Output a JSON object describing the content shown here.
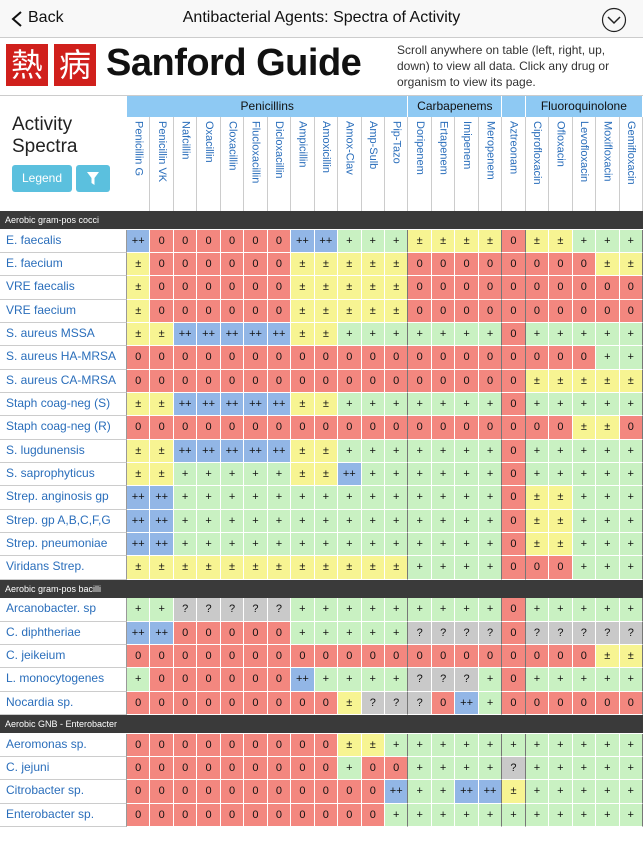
{
  "nav": {
    "back": "Back",
    "title": "Antibacterial Agents: Spectra of Activity"
  },
  "header": {
    "logo_chars": [
      "熱",
      "病"
    ],
    "brand": "Sanford Guide",
    "instructions": "Scroll anywhere on table (left, right, up, down) to view all data. Click any drug or organism to view its page."
  },
  "panel": {
    "title": "Activity Spectra",
    "legend_button": "Legend"
  },
  "table": {
    "groups": [
      {
        "label": "Penicillins",
        "drugs": [
          "Penicillin G",
          "Penicillin VK",
          "Nafcillin",
          "Oxacillin",
          "Cloxacillin",
          "Flucloxacillin",
          "Dicloxacillin",
          "Ampicillin",
          "Amoxicillin",
          "Amox-Clav",
          "Amp-Sulb",
          "Pip-Tazo"
        ]
      },
      {
        "label": "Carbapenems",
        "drugs": [
          "Doripenem",
          "Ertapenem",
          "Imipenem",
          "Meropenem"
        ]
      },
      {
        "label": null,
        "drugs": [
          "Aztreonam"
        ]
      },
      {
        "label": "Fluoroquinolone",
        "drugs": [
          "Ciprofloxacin",
          "Ofloxacin",
          "Levofloxacin",
          "Moxifloxacin",
          "Gemifloxacin"
        ]
      }
    ],
    "sections": [
      {
        "title": "Aerobic gram-pos cocci",
        "rows": [
          {
            "organism": "E. faecalis",
            "cells": [
              "++",
              "0",
              "0",
              "0",
              "0",
              "0",
              "0",
              "++",
              "++",
              "+",
              "+",
              "+",
              "±",
              "±",
              "±",
              "±",
              "0",
              "±",
              "±",
              "+",
              "+",
              "+"
            ]
          },
          {
            "organism": "E. faecium",
            "cells": [
              "±",
              "0",
              "0",
              "0",
              "0",
              "0",
              "0",
              "±",
              "±",
              "±",
              "±",
              "±",
              "0",
              "0",
              "0",
              "0",
              "0",
              "0",
              "0",
              "0",
              "±",
              "±"
            ]
          },
          {
            "organism": "VRE faecalis",
            "cells": [
              "±",
              "0",
              "0",
              "0",
              "0",
              "0",
              "0",
              "±",
              "±",
              "±",
              "±",
              "±",
              "0",
              "0",
              "0",
              "0",
              "0",
              "0",
              "0",
              "0",
              "0",
              "0"
            ]
          },
          {
            "organism": "VRE faecium",
            "cells": [
              "±",
              "0",
              "0",
              "0",
              "0",
              "0",
              "0",
              "±",
              "±",
              "±",
              "±",
              "±",
              "0",
              "0",
              "0",
              "0",
              "0",
              "0",
              "0",
              "0",
              "0",
              "0"
            ]
          },
          {
            "organism": "S. aureus MSSA",
            "cells": [
              "±",
              "±",
              "++",
              "++",
              "++",
              "++",
              "++",
              "±",
              "±",
              "+",
              "+",
              "+",
              "+",
              "+",
              "+",
              "+",
              "0",
              "+",
              "+",
              "+",
              "+",
              "+"
            ]
          },
          {
            "organism": "S. aureus HA-MRSA",
            "cells": [
              "0",
              "0",
              "0",
              "0",
              "0",
              "0",
              "0",
              "0",
              "0",
              "0",
              "0",
              "0",
              "0",
              "0",
              "0",
              "0",
              "0",
              "0",
              "0",
              "0",
              "+",
              "+"
            ]
          },
          {
            "organism": "S. aureus CA-MRSA",
            "cells": [
              "0",
              "0",
              "0",
              "0",
              "0",
              "0",
              "0",
              "0",
              "0",
              "0",
              "0",
              "0",
              "0",
              "0",
              "0",
              "0",
              "0",
              "±",
              "±",
              "±",
              "±",
              "±"
            ]
          },
          {
            "organism": "Staph coag-neg (S)",
            "cells": [
              "±",
              "±",
              "++",
              "++",
              "++",
              "++",
              "++",
              "±",
              "±",
              "+",
              "+",
              "+",
              "+",
              "+",
              "+",
              "+",
              "0",
              "+",
              "+",
              "+",
              "+",
              "+"
            ]
          },
          {
            "organism": "Staph coag-neg (R)",
            "cells": [
              "0",
              "0",
              "0",
              "0",
              "0",
              "0",
              "0",
              "0",
              "0",
              "0",
              "0",
              "0",
              "0",
              "0",
              "0",
              "0",
              "0",
              "0",
              "0",
              "±",
              "±",
              "0"
            ]
          },
          {
            "organism": "S. lugdunensis",
            "cells": [
              "±",
              "±",
              "++",
              "++",
              "++",
              "++",
              "++",
              "±",
              "±",
              "+",
              "+",
              "+",
              "+",
              "+",
              "+",
              "+",
              "0",
              "+",
              "+",
              "+",
              "+",
              "+"
            ]
          },
          {
            "organism": "S. saprophyticus",
            "cells": [
              "±",
              "±",
              "+",
              "+",
              "+",
              "+",
              "+",
              "±",
              "±",
              "++",
              "+",
              "+",
              "+",
              "+",
              "+",
              "+",
              "0",
              "+",
              "+",
              "+",
              "+",
              "+"
            ]
          },
          {
            "organism": "Strep. anginosis gp",
            "cells": [
              "++",
              "++",
              "+",
              "+",
              "+",
              "+",
              "+",
              "+",
              "+",
              "+",
              "+",
              "+",
              "+",
              "+",
              "+",
              "+",
              "0",
              "±",
              "±",
              "+",
              "+",
              "+"
            ]
          },
          {
            "organism": "Strep. gp A,B,C,F,G",
            "cells": [
              "++",
              "++",
              "+",
              "+",
              "+",
              "+",
              "+",
              "+",
              "+",
              "+",
              "+",
              "+",
              "+",
              "+",
              "+",
              "+",
              "0",
              "±",
              "±",
              "+",
              "+",
              "+"
            ]
          },
          {
            "organism": "Strep. pneumoniae",
            "cells": [
              "++",
              "++",
              "+",
              "+",
              "+",
              "+",
              "+",
              "+",
              "+",
              "+",
              "+",
              "+",
              "+",
              "+",
              "+",
              "+",
              "0",
              "±",
              "±",
              "+",
              "+",
              "+"
            ]
          },
          {
            "organism": "Viridans Strep.",
            "cells": [
              "±",
              "±",
              "±",
              "±",
              "±",
              "±",
              "±",
              "±",
              "±",
              "±",
              "±",
              "±",
              "+",
              "+",
              "+",
              "+",
              "0",
              "0",
              "0",
              "+",
              "+",
              "+"
            ]
          }
        ]
      },
      {
        "title": "Aerobic gram-pos bacilli",
        "rows": [
          {
            "organism": "Arcanobacter. sp",
            "cells": [
              "+",
              "+",
              "?",
              "?",
              "?",
              "?",
              "?",
              "+",
              "+",
              "+",
              "+",
              "+",
              "+",
              "+",
              "+",
              "+",
              "0",
              "+",
              "+",
              "+",
              "+",
              "+"
            ]
          },
          {
            "organism": "C. diphtheriae",
            "cells": [
              "++",
              "++",
              "0",
              "0",
              "0",
              "0",
              "0",
              "+",
              "+",
              "+",
              "+",
              "+",
              "?",
              "?",
              "?",
              "?",
              "0",
              "?",
              "?",
              "?",
              "?",
              "?"
            ]
          },
          {
            "organism": "C. jeikeium",
            "cells": [
              "0",
              "0",
              "0",
              "0",
              "0",
              "0",
              "0",
              "0",
              "0",
              "0",
              "0",
              "0",
              "0",
              "0",
              "0",
              "0",
              "0",
              "0",
              "0",
              "0",
              "±",
              "±"
            ]
          },
          {
            "organism": "L. monocytogenes",
            "cells": [
              "+",
              "0",
              "0",
              "0",
              "0",
              "0",
              "0",
              "++",
              "+",
              "+",
              "+",
              "+",
              "?",
              "?",
              "?",
              "+",
              "0",
              "+",
              "+",
              "+",
              "+",
              "+"
            ]
          },
          {
            "organism": "Nocardia sp.",
            "cells": [
              "0",
              "0",
              "0",
              "0",
              "0",
              "0",
              "0",
              "0",
              "0",
              "±",
              "?",
              "?",
              "?",
              "0",
              "++",
              "+",
              "0",
              "0",
              "0",
              "0",
              "0",
              "0"
            ]
          }
        ]
      },
      {
        "title": "Aerobic GNB - Enterobacter",
        "rows": [
          {
            "organism": "Aeromonas sp.",
            "cells": [
              "0",
              "0",
              "0",
              "0",
              "0",
              "0",
              "0",
              "0",
              "0",
              "±",
              "±",
              "+",
              "+",
              "+",
              "+",
              "+",
              "+",
              "+",
              "+",
              "+",
              "+",
              "+"
            ]
          },
          {
            "organism": "C. jejuni",
            "cells": [
              "0",
              "0",
              "0",
              "0",
              "0",
              "0",
              "0",
              "0",
              "0",
              "+",
              "0",
              "0",
              "+",
              "+",
              "+",
              "+",
              "?",
              "+",
              "+",
              "+",
              "+",
              "+"
            ]
          },
          {
            "organism": "Citrobacter sp.",
            "cells": [
              "0",
              "0",
              "0",
              "0",
              "0",
              "0",
              "0",
              "0",
              "0",
              "0",
              "0",
              "++",
              "+",
              "+",
              "++",
              "++",
              "±",
              "+",
              "+",
              "+",
              "+",
              "+"
            ]
          },
          {
            "organism": "Enterobacter sp.",
            "cells": [
              "0",
              "0",
              "0",
              "0",
              "0",
              "0",
              "0",
              "0",
              "0",
              "0",
              "0",
              "+",
              "+",
              "+",
              "+",
              "+",
              "+",
              "+",
              "+",
              "+",
              "+",
              "+"
            ]
          }
        ]
      }
    ]
  }
}
